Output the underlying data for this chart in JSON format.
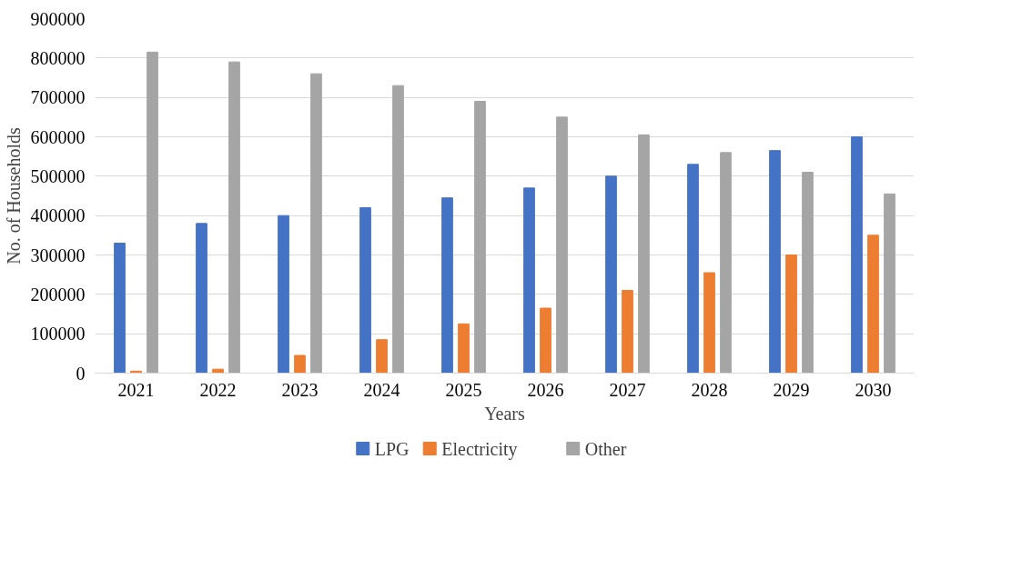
{
  "chart_data": {
    "type": "bar",
    "xlabel": "Years",
    "ylabel": "No. of Households",
    "categories": [
      "2021",
      "2022",
      "2023",
      "2024",
      "2025",
      "2026",
      "2027",
      "2028",
      "2029",
      "2030"
    ],
    "series": [
      {
        "name": "LPG",
        "color": "#4472c4",
        "values": [
          330000,
          380000,
          400000,
          420000,
          445000,
          470000,
          500000,
          530000,
          565000,
          600000
        ]
      },
      {
        "name": "Electricity",
        "color": "#ed7d31",
        "values": [
          5000,
          10000,
          45000,
          85000,
          125000,
          165000,
          210000,
          255000,
          300000,
          350000
        ]
      },
      {
        "name": "Other",
        "color": "#a5a5a5",
        "values": [
          815000,
          790000,
          760000,
          730000,
          690000,
          650000,
          605000,
          560000,
          510000,
          455000
        ]
      }
    ],
    "ylim": [
      0,
      900000
    ],
    "yticks": [
      0,
      100000,
      200000,
      300000,
      400000,
      500000,
      600000,
      700000,
      800000,
      900000
    ],
    "grid": "y",
    "legend": "bottom"
  }
}
